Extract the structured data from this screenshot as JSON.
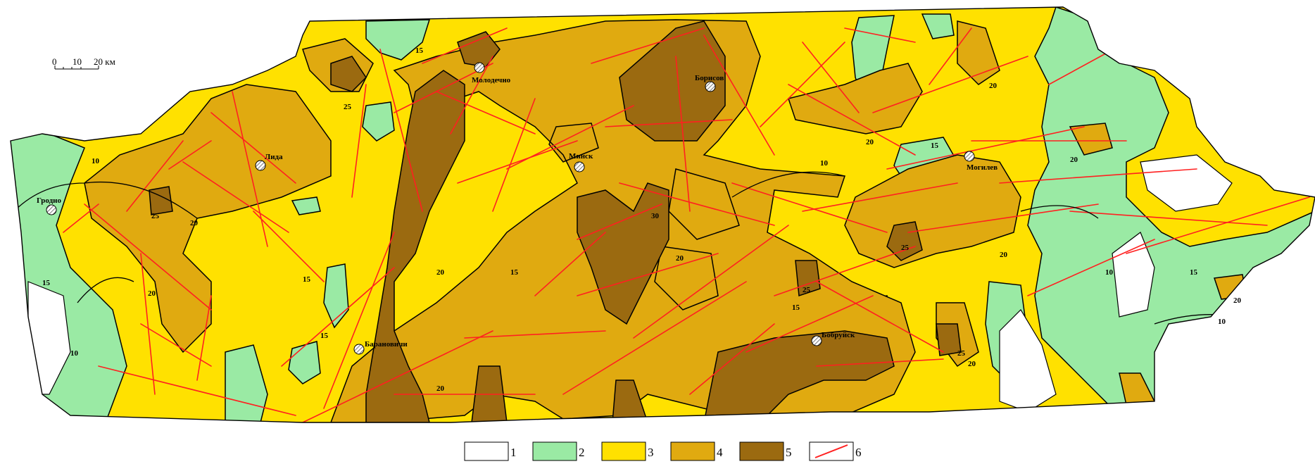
{
  "scale_bar": {
    "ticks": [
      "0",
      "10",
      "20 км"
    ]
  },
  "cities": [
    {
      "name": "Гродно"
    },
    {
      "name": "Лида"
    },
    {
      "name": "Молодечно"
    },
    {
      "name": "Борисов"
    },
    {
      "name": "Минск"
    },
    {
      "name": "Могилев"
    },
    {
      "name": "Барановичи"
    },
    {
      "name": "Бобруйск"
    }
  ],
  "isoline_labels": [
    "10",
    "15",
    "20",
    "25",
    "30"
  ],
  "legend": [
    {
      "key": "1",
      "color": "#ffffff"
    },
    {
      "key": "2",
      "color": "#9aeaa4"
    },
    {
      "key": "3",
      "color": "#ffe100"
    },
    {
      "key": "4",
      "color": "#e0aa10"
    },
    {
      "key": "5",
      "color": "#9b6a10"
    },
    {
      "key": "6",
      "color": "#ff2020",
      "type": "line"
    }
  ],
  "colors": {
    "fault": "#ff2020",
    "contour": "#000000"
  }
}
